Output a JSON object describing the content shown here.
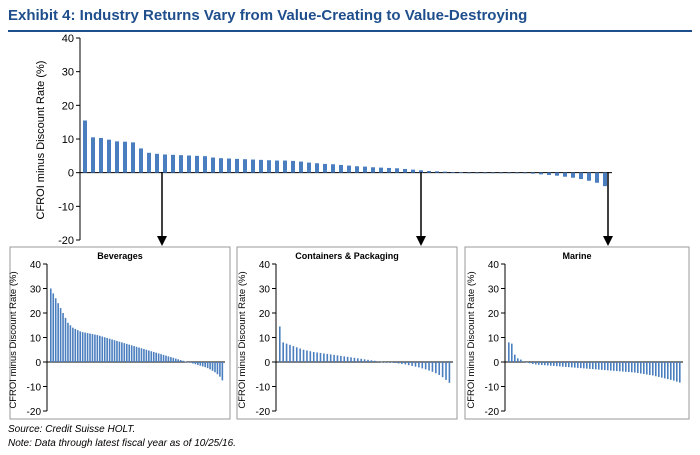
{
  "title": "Exhibit 4: Industry Returns Vary from Value-Creating to Value-Destroying",
  "footnotes": {
    "source": "Source: Credit Suisse HOLT.",
    "note": "Note: Data through latest fiscal year as of 10/25/16."
  },
  "colors": {
    "bar": "#4a7ebf",
    "axis": "#000000",
    "title": "#1f4e8c",
    "panel_border": "#9a9a9a"
  },
  "chart_data": [
    {
      "id": "main",
      "type": "bar",
      "title": "",
      "ylabel": "CFROI minus Discount Rate (%)",
      "ylim": [
        -20,
        40
      ],
      "yticks": [
        40,
        30,
        20,
        10,
        0,
        -10,
        -20
      ],
      "grid": false,
      "legend": "none",
      "values": [
        15.5,
        10.5,
        10.3,
        9.8,
        9.3,
        9.2,
        9.0,
        7.2,
        5.9,
        5.6,
        5.4,
        5.3,
        5.2,
        5.1,
        5.0,
        4.9,
        4.5,
        4.3,
        4.2,
        4.1,
        4.0,
        3.9,
        3.8,
        3.7,
        3.6,
        3.6,
        3.5,
        3.3,
        3.0,
        2.8,
        2.6,
        2.5,
        2.3,
        2.1,
        1.9,
        1.8,
        1.6,
        1.5,
        1.4,
        1.3,
        1.1,
        0.9,
        0.7,
        0.5,
        0.4,
        0.3,
        0.2,
        0.1,
        0.0,
        0.0,
        0.0,
        0.0,
        0.0,
        0.0,
        -0.1,
        -0.2,
        -0.3,
        -0.5,
        -0.7,
        -0.9,
        -1.2,
        -1.5,
        -1.9,
        -2.4,
        -3.0,
        -4.0
      ]
    },
    {
      "id": "beverages",
      "type": "bar",
      "title": "Beverages",
      "ylabel": "CFROI minus Discount Rate (%)",
      "ylim": [
        -20,
        40
      ],
      "yticks": [
        40,
        30,
        20,
        10,
        0,
        -10,
        -20
      ],
      "grid": false,
      "legend": "none",
      "values": [
        30,
        28,
        26,
        24,
        22,
        20,
        18,
        16,
        15,
        14,
        13.5,
        13,
        12.5,
        12.2,
        12,
        11.8,
        11.6,
        11.4,
        11.2,
        11,
        10.7,
        10.4,
        10.1,
        9.8,
        9.5,
        9.2,
        8.9,
        8.6,
        8.3,
        8,
        7.7,
        7.4,
        7.1,
        6.8,
        6.5,
        6.2,
        5.9,
        5.6,
        5.3,
        5,
        4.7,
        4.4,
        4.1,
        3.8,
        3.5,
        3.2,
        2.9,
        2.6,
        2.3,
        2,
        1.7,
        1.4,
        1.1,
        0.8,
        0.5,
        0.2,
        0,
        -0.3,
        -0.6,
        -0.9,
        -1.2,
        -1.5,
        -1.8,
        -2.1,
        -2.5,
        -3,
        -3.6,
        -4.2,
        -5,
        -6,
        -7.5
      ]
    },
    {
      "id": "containers",
      "type": "bar",
      "title": "Containers & Packaging",
      "ylabel": "CFROI minus Discount Rate (%)",
      "ylim": [
        -20,
        40
      ],
      "yticks": [
        40,
        30,
        20,
        10,
        0,
        -10,
        -20
      ],
      "grid": false,
      "legend": "none",
      "values": [
        14.5,
        8,
        7.5,
        7,
        6.5,
        6,
        5.5,
        5,
        4.7,
        4.4,
        4.1,
        3.9,
        3.7,
        3.5,
        3.3,
        3.1,
        2.9,
        2.7,
        2.5,
        2.3,
        2.1,
        1.9,
        1.7,
        1.5,
        1.3,
        1.1,
        0.9,
        0.7,
        0.5,
        0.3,
        0.1,
        0,
        0,
        -0.2,
        -0.4,
        -0.6,
        -0.8,
        -1,
        -1.3,
        -1.6,
        -1.9,
        -2.2,
        -2.6,
        -3,
        -3.5,
        -4,
        -4.6,
        -5.3,
        -6.2,
        -7.3,
        -8.5
      ]
    },
    {
      "id": "marine",
      "type": "bar",
      "title": "Marine",
      "ylabel": "CFROI minus Discount Rate (%)",
      "ylim": [
        -20,
        40
      ],
      "yticks": [
        40,
        30,
        20,
        10,
        0,
        -10,
        -20
      ],
      "grid": false,
      "legend": "none",
      "values": [
        8,
        7.5,
        3,
        1.5,
        1,
        0.3,
        -0.2,
        -0.5,
        -0.8,
        -1,
        -1.1,
        -1.2,
        -1.3,
        -1.4,
        -1.5,
        -1.6,
        -1.7,
        -1.8,
        -1.9,
        -2,
        -2.1,
        -2.2,
        -2.3,
        -2.4,
        -2.5,
        -2.6,
        -2.7,
        -2.8,
        -2.9,
        -3,
        -3.1,
        -3.2,
        -3.3,
        -3.4,
        -3.5,
        -3.6,
        -3.7,
        -3.8,
        -3.9,
        -4,
        -4.1,
        -4.2,
        -4.3,
        -4.5,
        -4.7,
        -4.9,
        -5.1,
        -5.3,
        -5.5,
        -5.8,
        -6.1,
        -6.4,
        -6.7,
        -7,
        -7.3,
        -7.6,
        -8,
        -8.4
      ]
    }
  ]
}
